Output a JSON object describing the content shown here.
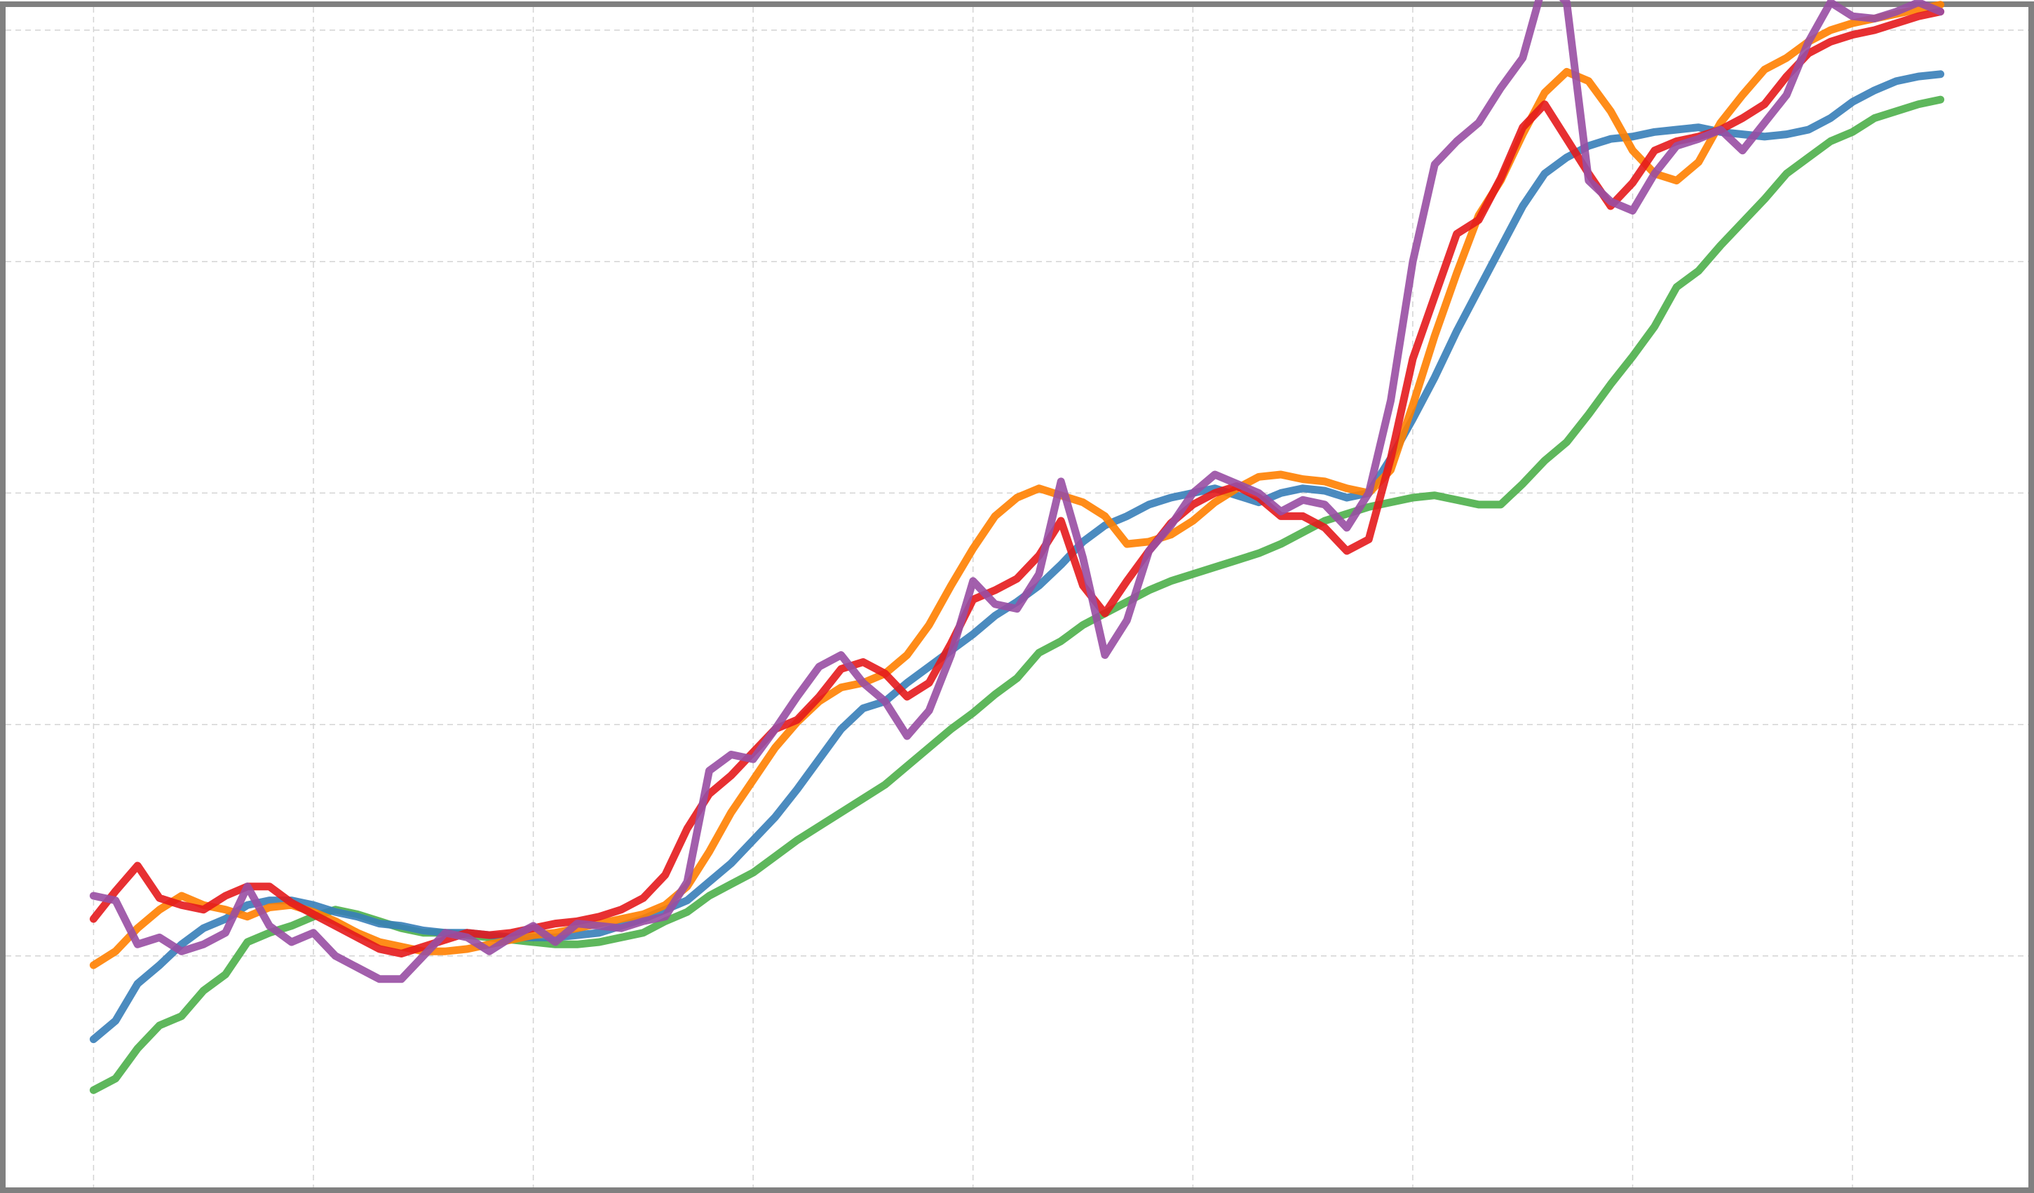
{
  "chart_data": {
    "type": "line",
    "title": "",
    "xlabel": "",
    "ylabel": "",
    "grid": true,
    "legend": "none",
    "tick_labels_visible": false,
    "xlim": [
      -0.4,
      8.8
    ],
    "ylim": [
      0.0,
      5.1
    ],
    "x": [
      0.0,
      0.1,
      0.2,
      0.3,
      0.4,
      0.5,
      0.6,
      0.7,
      0.8,
      0.9,
      1.0,
      1.1,
      1.2,
      1.3,
      1.4,
      1.5,
      1.6,
      1.7,
      1.8,
      1.9,
      2.0,
      2.1,
      2.2,
      2.3,
      2.4,
      2.5,
      2.6,
      2.7,
      2.8,
      2.9,
      3.0,
      3.1,
      3.2,
      3.3,
      3.4,
      3.5,
      3.6,
      3.7,
      3.8,
      3.9,
      4.0,
      4.1,
      4.2,
      4.3,
      4.4,
      4.5,
      4.6,
      4.7,
      4.8,
      4.9,
      5.0,
      5.1,
      5.2,
      5.3,
      5.4,
      5.5,
      5.6,
      5.7,
      5.8,
      5.9,
      6.0,
      6.1,
      6.2,
      6.3,
      6.4,
      6.5,
      6.6,
      6.7,
      6.8,
      6.9,
      7.0,
      7.1,
      7.2,
      7.3,
      7.4,
      7.5,
      7.6,
      7.7,
      7.8,
      7.9,
      8.0,
      8.1,
      8.2,
      8.3,
      8.4
    ],
    "series": [
      {
        "name": "green",
        "color": "#4daf4a",
        "values": [
          0.42,
          0.47,
          0.6,
          0.7,
          0.74,
          0.85,
          0.92,
          1.06,
          1.1,
          1.13,
          1.17,
          1.2,
          1.18,
          1.15,
          1.12,
          1.1,
          1.1,
          1.09,
          1.08,
          1.07,
          1.06,
          1.05,
          1.05,
          1.06,
          1.08,
          1.1,
          1.15,
          1.19,
          1.26,
          1.31,
          1.36,
          1.43,
          1.5,
          1.56,
          1.62,
          1.68,
          1.74,
          1.82,
          1.9,
          1.98,
          2.05,
          2.13,
          2.2,
          2.31,
          2.36,
          2.43,
          2.48,
          2.53,
          2.58,
          2.62,
          2.65,
          2.68,
          2.71,
          2.74,
          2.78,
          2.83,
          2.88,
          2.91,
          2.94,
          2.96,
          2.98,
          2.99,
          2.97,
          2.95,
          2.95,
          3.04,
          3.14,
          3.22,
          3.34,
          3.47,
          3.59,
          3.72,
          3.89,
          3.96,
          4.07,
          4.17,
          4.27,
          4.38,
          4.45,
          4.52,
          4.56,
          4.62,
          4.65,
          4.68,
          4.7
        ]
      },
      {
        "name": "blue",
        "color": "#377eb8",
        "values": [
          0.64,
          0.72,
          0.88,
          0.96,
          1.05,
          1.12,
          1.16,
          1.22,
          1.24,
          1.24,
          1.22,
          1.19,
          1.17,
          1.14,
          1.13,
          1.11,
          1.1,
          1.1,
          1.09,
          1.08,
          1.08,
          1.08,
          1.09,
          1.1,
          1.13,
          1.16,
          1.2,
          1.24,
          1.32,
          1.4,
          1.5,
          1.6,
          1.72,
          1.85,
          1.98,
          2.07,
          2.1,
          2.18,
          2.25,
          2.32,
          2.39,
          2.47,
          2.53,
          2.6,
          2.69,
          2.79,
          2.86,
          2.9,
          2.95,
          2.98,
          3.0,
          3.02,
          2.99,
          2.96,
          3.0,
          3.02,
          3.01,
          2.98,
          3.0,
          3.15,
          3.32,
          3.5,
          3.7,
          3.88,
          4.06,
          4.24,
          4.38,
          4.45,
          4.5,
          4.53,
          4.54,
          4.56,
          4.57,
          4.58,
          4.56,
          4.55,
          4.54,
          4.55,
          4.57,
          4.62,
          4.69,
          4.74,
          4.78,
          4.8,
          4.81
        ]
      },
      {
        "name": "orange",
        "color": "#ff7f00",
        "values": [
          0.96,
          1.02,
          1.12,
          1.2,
          1.26,
          1.22,
          1.2,
          1.17,
          1.21,
          1.22,
          1.19,
          1.15,
          1.1,
          1.06,
          1.04,
          1.02,
          1.02,
          1.03,
          1.05,
          1.07,
          1.09,
          1.1,
          1.12,
          1.14,
          1.16,
          1.18,
          1.22,
          1.3,
          1.45,
          1.62,
          1.76,
          1.9,
          2.01,
          2.1,
          2.16,
          2.18,
          2.22,
          2.3,
          2.43,
          2.6,
          2.76,
          2.9,
          2.98,
          3.02,
          2.99,
          2.96,
          2.9,
          2.78,
          2.79,
          2.82,
          2.88,
          2.96,
          3.02,
          3.07,
          3.08,
          3.06,
          3.05,
          3.02,
          3.0,
          3.1,
          3.38,
          3.68,
          3.95,
          4.2,
          4.35,
          4.55,
          4.73,
          4.82,
          4.78,
          4.65,
          4.48,
          4.38,
          4.35,
          4.43,
          4.6,
          4.72,
          4.83,
          4.88,
          4.95,
          5.0,
          5.03,
          5.05,
          5.07,
          5.09,
          5.11
        ]
      },
      {
        "name": "red",
        "color": "#e41a1c",
        "values": [
          1.16,
          1.28,
          1.39,
          1.25,
          1.22,
          1.2,
          1.26,
          1.3,
          1.3,
          1.23,
          1.18,
          1.13,
          1.08,
          1.03,
          1.01,
          1.04,
          1.07,
          1.1,
          1.09,
          1.1,
          1.12,
          1.14,
          1.15,
          1.17,
          1.2,
          1.25,
          1.35,
          1.55,
          1.7,
          1.78,
          1.88,
          1.98,
          2.02,
          2.12,
          2.24,
          2.27,
          2.22,
          2.12,
          2.18,
          2.35,
          2.54,
          2.58,
          2.63,
          2.73,
          2.88,
          2.6,
          2.48,
          2.62,
          2.75,
          2.87,
          2.95,
          3.0,
          3.03,
          2.98,
          2.9,
          2.9,
          2.85,
          2.75,
          2.8,
          3.15,
          3.58,
          3.85,
          4.12,
          4.18,
          4.36,
          4.58,
          4.68,
          4.53,
          4.38,
          4.24,
          4.34,
          4.48,
          4.52,
          4.54,
          4.57,
          4.62,
          4.68,
          4.8,
          4.9,
          4.95,
          4.98,
          5.0,
          5.03,
          5.06,
          5.08
        ]
      },
      {
        "name": "purple",
        "color": "#984ea3",
        "values": [
          1.26,
          1.24,
          1.05,
          1.08,
          1.02,
          1.05,
          1.1,
          1.3,
          1.13,
          1.06,
          1.1,
          1.0,
          0.95,
          0.9,
          0.9,
          1.0,
          1.1,
          1.08,
          1.02,
          1.08,
          1.13,
          1.06,
          1.14,
          1.13,
          1.12,
          1.15,
          1.17,
          1.32,
          1.8,
          1.87,
          1.85,
          1.98,
          2.12,
          2.25,
          2.3,
          2.18,
          2.1,
          1.95,
          2.06,
          2.3,
          2.62,
          2.52,
          2.5,
          2.65,
          3.05,
          2.72,
          2.3,
          2.45,
          2.75,
          2.86,
          3.0,
          3.08,
          3.04,
          3.0,
          2.92,
          2.97,
          2.95,
          2.85,
          3.0,
          3.4,
          4.0,
          4.42,
          4.52,
          4.6,
          4.75,
          4.88,
          5.22,
          5.12,
          4.35,
          4.26,
          4.22,
          4.38,
          4.5,
          4.53,
          4.57,
          4.48,
          4.6,
          4.72,
          4.95,
          5.12,
          5.06,
          5.05,
          5.08,
          5.12,
          5.08
        ]
      }
    ]
  }
}
